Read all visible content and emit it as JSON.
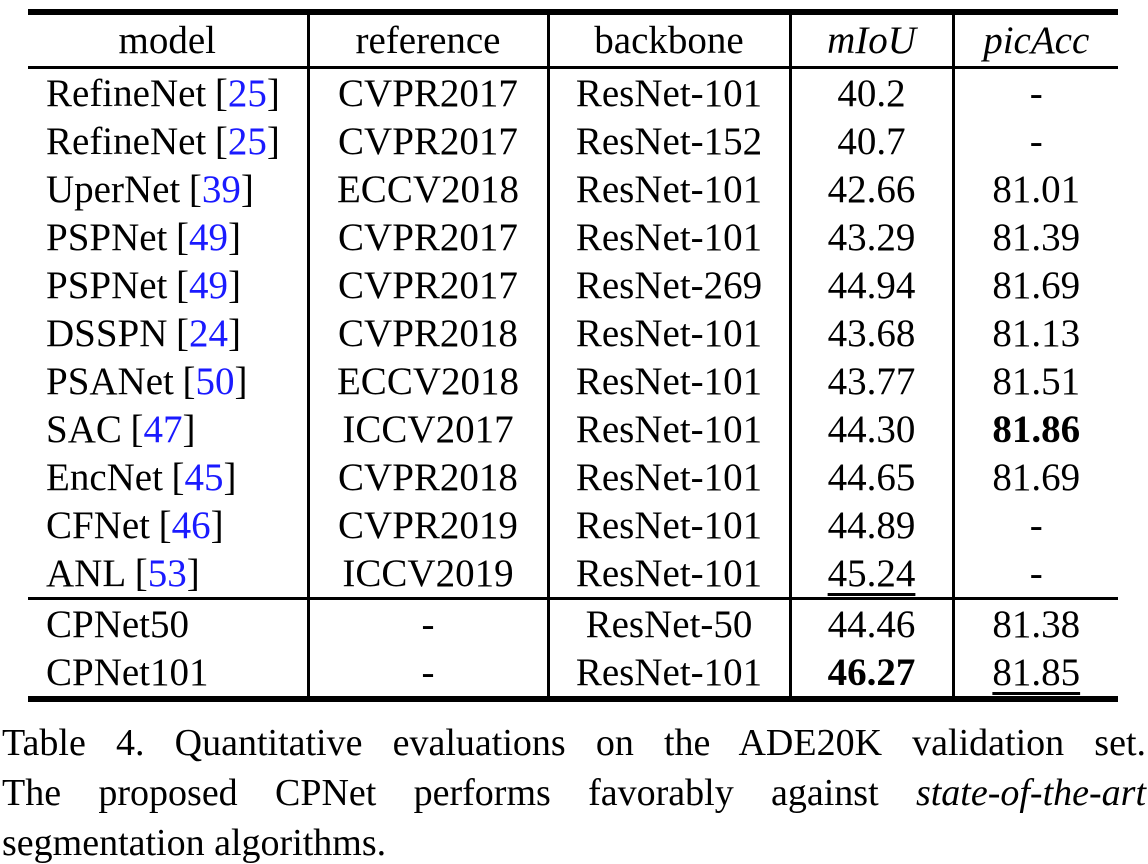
{
  "colors": {
    "text": "#000000",
    "citation_link": "#1a1aff",
    "background": "#ffffff"
  },
  "table": {
    "headers": [
      {
        "label": "model"
      },
      {
        "label": "reference"
      },
      {
        "label": "backbone"
      },
      {
        "label": "mIoU"
      },
      {
        "label": "picAcc"
      }
    ],
    "citation_brackets": {
      "open": "[",
      "close": "]"
    },
    "rows": [
      {
        "model": "RefineNet",
        "cite": "25",
        "reference": "CVPR2017",
        "backbone": "ResNet-101",
        "miou": "40.2",
        "picacc": "-"
      },
      {
        "model": "RefineNet",
        "cite": "25",
        "reference": "CVPR2017",
        "backbone": "ResNet-152",
        "miou": "40.7",
        "picacc": "-"
      },
      {
        "model": "UperNet",
        "cite": "39",
        "reference": "ECCV2018",
        "backbone": "ResNet-101",
        "miou": "42.66",
        "picacc": "81.01"
      },
      {
        "model": "PSPNet",
        "cite": "49",
        "reference": "CVPR2017",
        "backbone": "ResNet-101",
        "miou": "43.29",
        "picacc": "81.39"
      },
      {
        "model": "PSPNet",
        "cite": "49",
        "reference": "CVPR2017",
        "backbone": "ResNet-269",
        "miou": "44.94",
        "picacc": "81.69"
      },
      {
        "model": "DSSPN",
        "cite": "24",
        "reference": "CVPR2018",
        "backbone": "ResNet-101",
        "miou": "43.68",
        "picacc": "81.13"
      },
      {
        "model": "PSANet",
        "cite": "50",
        "reference": "ECCV2018",
        "backbone": "ResNet-101",
        "miou": "43.77",
        "picacc": "81.51"
      },
      {
        "model": "SAC",
        "cite": "47",
        "reference": "ICCV2017",
        "backbone": "ResNet-101",
        "miou": "44.30",
        "picacc": "81.86",
        "picacc_bold": true
      },
      {
        "model": "EncNet",
        "cite": "45",
        "reference": "CVPR2018",
        "backbone": "ResNet-101",
        "miou": "44.65",
        "picacc": "81.69"
      },
      {
        "model": "CFNet",
        "cite": "46",
        "reference": "CVPR2019",
        "backbone": "ResNet-101",
        "miou": "44.89",
        "picacc": "-"
      },
      {
        "model": "ANL",
        "cite": "53",
        "reference": "ICCV2019",
        "backbone": "ResNet-101",
        "miou": "45.24",
        "miou_underline": true,
        "picacc": "-"
      },
      {
        "model": "CPNet50",
        "cite": "",
        "reference": "-",
        "backbone": "ResNet-50",
        "miou": "44.46",
        "picacc": "81.38"
      },
      {
        "model": "CPNet101",
        "cite": "",
        "reference": "-",
        "backbone": "ResNet-101",
        "miou": "46.27",
        "miou_bold": true,
        "picacc": "81.85",
        "picacc_underline": true
      }
    ]
  },
  "caption": {
    "line1": "Table 4. Quantitative evaluations on the ADE20K validation set.",
    "line2_text": "The proposed CPNet performs favorably against",
    "line2_italic": "state-of-the-art",
    "line3": "segmentation algorithms."
  }
}
